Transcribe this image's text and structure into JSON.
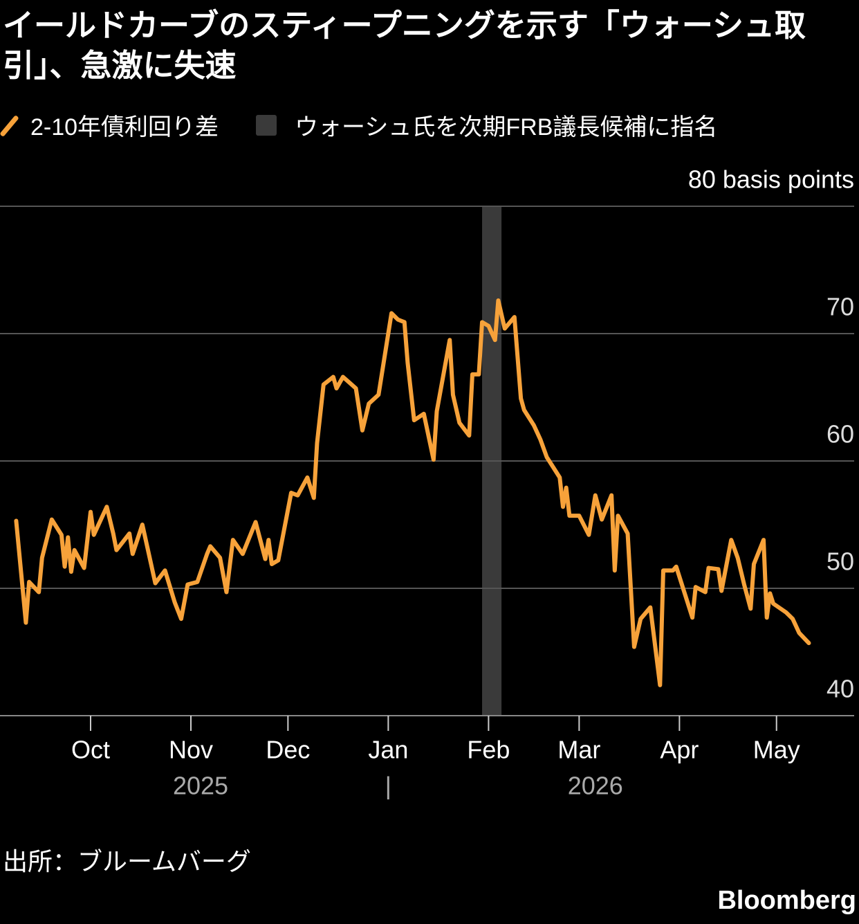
{
  "chart_data": {
    "type": "line",
    "title": "イールドカーブのスティープニングを示す「ウォーシュ取引」、急激に失速",
    "series": [
      {
        "name": "2-10年債利回り差",
        "color": "#f7a23a",
        "x": [
          7,
          10,
          11,
          14,
          15,
          18,
          21,
          22,
          23,
          24,
          25,
          28,
          30,
          31,
          35,
          37,
          38,
          42,
          43,
          46,
          50,
          53,
          56,
          58,
          60,
          63,
          66,
          67,
          70,
          72,
          74,
          77,
          81,
          84,
          85,
          86,
          88,
          92,
          94,
          97,
          99,
          100,
          102,
          105,
          106,
          108,
          112,
          114,
          116,
          119,
          123,
          125,
          127,
          128,
          130,
          133,
          136,
          137,
          141,
          142,
          144,
          147,
          148,
          150,
          151,
          153,
          155,
          156,
          158,
          161,
          163,
          164,
          167,
          169,
          171,
          175,
          176,
          177,
          178,
          181,
          184,
          186,
          188,
          191,
          192,
          193,
          196,
          198,
          200,
          203,
          206,
          207,
          210,
          211,
          216,
          217,
          220,
          221,
          224,
          225,
          228,
          230,
          232,
          234,
          235,
          238,
          239,
          240,
          241,
          245,
          247,
          249,
          252
        ],
        "values": [
          55.3,
          47.3,
          50.5,
          49.7,
          52.4,
          55.4,
          54.2,
          51.7,
          54.0,
          51.3,
          53.0,
          51.6,
          56.0,
          54.2,
          56.4,
          54.3,
          53.0,
          54.3,
          52.7,
          55.0,
          50.4,
          51.4,
          48.9,
          47.6,
          50.3,
          50.5,
          52.7,
          53.3,
          52.4,
          49.7,
          53.8,
          52.7,
          55.2,
          52.3,
          53.8,
          51.9,
          52.2,
          57.5,
          57.3,
          58.7,
          57.1,
          61.4,
          66.0,
          66.6,
          65.7,
          66.6,
          65.7,
          62.4,
          64.5,
          65.2,
          71.6,
          71.1,
          70.9,
          67.7,
          63.2,
          63.7,
          60.1,
          63.9,
          69.5,
          65.2,
          63.0,
          62.0,
          66.8,
          66.8,
          70.9,
          70.6,
          69.5,
          72.6,
          70.4,
          71.3,
          64.9,
          64.0,
          62.8,
          61.7,
          60.3,
          58.7,
          56.4,
          57.9,
          55.7,
          55.7,
          54.2,
          57.3,
          55.4,
          57.3,
          51.4,
          55.7,
          54.3,
          45.4,
          47.6,
          48.5,
          42.4,
          51.4,
          51.4,
          51.7,
          47.7,
          50.1,
          49.7,
          51.6,
          51.5,
          49.8,
          53.8,
          52.4,
          50.3,
          48.4,
          51.9,
          53.8,
          47.7,
          49.6,
          48.8,
          48.1,
          47.6,
          46.5,
          45.7
        ]
      }
    ],
    "highlight": {
      "name": "ウォーシュ氏を次期FRB議長候補に指名",
      "color": "#3a3a3a",
      "xlim": [
        151,
        157
      ]
    },
    "xlim": [
      2,
      266
    ],
    "xticks": [
      {
        "value": 30,
        "label": "Oct"
      },
      {
        "value": 61,
        "label": "Nov"
      },
      {
        "value": 91,
        "label": "Dec"
      },
      {
        "value": 122,
        "label": "Jan"
      },
      {
        "value": 153,
        "label": "Feb"
      },
      {
        "value": 181,
        "label": "Mar"
      },
      {
        "value": 212,
        "label": "Apr"
      },
      {
        "value": 242,
        "label": "May"
      }
    ],
    "year_labels": [
      {
        "value": 64,
        "label": "2025"
      },
      {
        "value": 122,
        "label": "|"
      },
      {
        "value": 186,
        "label": "2026"
      }
    ],
    "ylim": [
      40,
      80
    ],
    "yticks": [
      40,
      50,
      60,
      70,
      {
        "value": 80,
        "label": "80 basis points"
      }
    ],
    "grid": true,
    "source": "出所：ブルームバーグ",
    "brand": "Bloomberg"
  }
}
